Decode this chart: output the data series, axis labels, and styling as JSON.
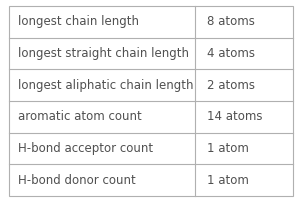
{
  "rows": [
    [
      "longest chain length",
      "8 atoms"
    ],
    [
      "longest straight chain length",
      "4 atoms"
    ],
    [
      "longest aliphatic chain length",
      "2 atoms"
    ],
    [
      "aromatic atom count",
      "14 atoms"
    ],
    [
      "H-bond acceptor count",
      "1 atom"
    ],
    [
      "H-bond donor count",
      "1 atom"
    ]
  ],
  "col_split": 0.655,
  "bg_color": "#ffffff",
  "border_color": "#b0b0b0",
  "text_color_left": "#505050",
  "text_color_right": "#505050",
  "font_size": 8.5,
  "fig_width": 3.02,
  "fig_height": 2.02,
  "dpi": 100
}
